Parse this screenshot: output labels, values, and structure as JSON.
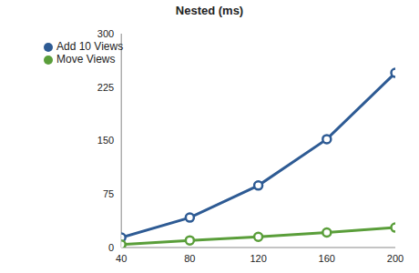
{
  "chart_data": {
    "type": "line",
    "title": "Nested (ms)",
    "x": [
      40,
      80,
      120,
      160,
      200
    ],
    "series": [
      {
        "name": "Add 10 Views",
        "color": "#2e5b94",
        "values": [
          14,
          42,
          87,
          152,
          245
        ]
      },
      {
        "name": "Move Views",
        "color": "#5a9e3a",
        "values": [
          4,
          10,
          15,
          21,
          28
        ]
      }
    ],
    "xlim": [
      40,
      200
    ],
    "xticks": [
      40,
      80,
      120,
      160,
      200
    ],
    "ylim": [
      0,
      300
    ],
    "yticks": [
      0,
      75,
      150,
      225,
      300
    ],
    "grid": false,
    "legend": "upper left",
    "marker": "circle"
  }
}
